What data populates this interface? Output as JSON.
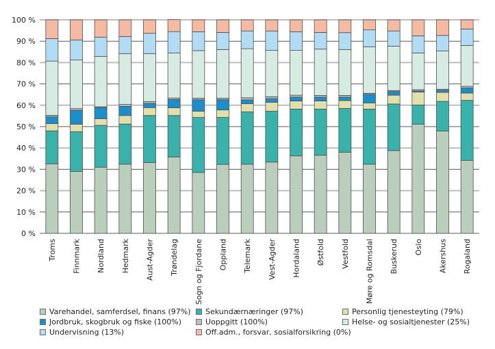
{
  "chart_data": {
    "type": "bar",
    "stacked": true,
    "title": "",
    "xlabel": "",
    "ylabel": "",
    "ylim": [
      0,
      100
    ],
    "yticks": [
      "0 %",
      "10 %",
      "20 %",
      "30 %",
      "40 %",
      "50 %",
      "60 %",
      "70 %",
      "80 %",
      "90 %",
      "100 %"
    ],
    "grid": true,
    "legend_position": "bottom",
    "categories": [
      "Troms",
      "Finnmark",
      "Nordland",
      "Hedmark",
      "Aust-Agder",
      "Trøndelag",
      "Sogn og Fjordane",
      "Oppland",
      "Telemark",
      "Vest-Agder",
      "Hordaland",
      "Østfold",
      "Vestfold",
      "Møre og Romsdal",
      "Buskerud",
      "Oslo",
      "Akershus",
      "Rogaland"
    ],
    "series": [
      {
        "name": "Varehandel, samferdsel, finans (97%)",
        "color": "#b9cfbb",
        "values": [
          32.6,
          29.0,
          31.0,
          32.4,
          33.2,
          35.8,
          28.5,
          32.3,
          32.4,
          33.4,
          36.3,
          36.6,
          38.0,
          32.4,
          38.8,
          51.1,
          47.9,
          34.2
        ]
      },
      {
        "name": "Sekundærnæringer (97%)",
        "color": "#38b2aa",
        "values": [
          15.4,
          18.6,
          19.6,
          18.8,
          22.0,
          19.4,
          25.8,
          22.0,
          24.5,
          23.8,
          21.9,
          21.6,
          20.5,
          25.8,
          21.8,
          9.0,
          13.9,
          28.1
        ]
      },
      {
        "name": "Personlig tjenesteyting (79%)",
        "color": "#e1dfac",
        "values": [
          3.4,
          3.5,
          3.1,
          4.0,
          3.7,
          3.6,
          2.9,
          3.5,
          3.8,
          4.2,
          3.8,
          3.8,
          3.7,
          2.9,
          4.1,
          6.1,
          4.2,
          3.4
        ]
      },
      {
        "name": "Jordbruk, skogbruk og fiske (100%)",
        "color": "#1b8fcb",
        "values": [
          3.2,
          6.5,
          5.2,
          4.3,
          2.0,
          3.9,
          5.4,
          4.8,
          1.8,
          1.7,
          1.8,
          1.8,
          1.6,
          4.0,
          1.7,
          0.5,
          1.0,
          2.4
        ]
      },
      {
        "name": "Uoppgitt (100%)",
        "color": "#bcbec0",
        "values": [
          0.7,
          0.8,
          0.4,
          0.9,
          0.8,
          0.7,
          0.7,
          0.7,
          1.0,
          0.9,
          0.9,
          0.8,
          0.8,
          0.5,
          0.5,
          0.6,
          0.5,
          0.8
        ]
      },
      {
        "name": "Helse- og sosialtjenester (25%)",
        "color": "#d6ebe1",
        "values": [
          25.4,
          22.8,
          23.6,
          23.8,
          22.5,
          21.1,
          22.3,
          22.8,
          23.0,
          21.7,
          21.0,
          21.7,
          21.5,
          21.8,
          20.8,
          17.2,
          17.9,
          19.1
        ]
      },
      {
        "name": "Undervisning (13%)",
        "color": "#b1dcf4",
        "values": [
          10.5,
          9.4,
          9.0,
          8.0,
          9.5,
          10.0,
          8.8,
          8.0,
          8.3,
          9.1,
          8.7,
          7.8,
          7.9,
          7.9,
          7.1,
          8.0,
          7.3,
          7.7
        ]
      },
      {
        "name": "Off.adm., forsvar, sosialforsikring (0%)",
        "color": "#f5bba2",
        "values": [
          8.8,
          9.4,
          8.1,
          7.8,
          6.3,
          5.6,
          5.6,
          5.9,
          5.2,
          5.2,
          5.6,
          5.9,
          6.0,
          4.7,
          5.2,
          7.5,
          7.3,
          4.3
        ]
      }
    ]
  },
  "legend": {
    "items": [
      {
        "label": "Varehandel, samferdsel, finans (97%)",
        "color": "#b9cfbb"
      },
      {
        "label": "Sekundærnæringer (97%)",
        "color": "#38b2aa"
      },
      {
        "label": "Personlig tjenesteyting (79%)",
        "color": "#e1dfac"
      },
      {
        "label": "Jordbruk, skogbruk og fiske (100%)",
        "color": "#1b8fcb"
      },
      {
        "label": "Uoppgitt (100%)",
        "color": "#bcbec0"
      },
      {
        "label": "Helse- og sosialtjenester (25%)",
        "color": "#d6ebe1"
      },
      {
        "label": "Undervisning (13%)",
        "color": "#b1dcf4"
      },
      {
        "label": "Off.adm., forsvar, sosialforsikring (0%)",
        "color": "#f5bba2"
      }
    ]
  }
}
